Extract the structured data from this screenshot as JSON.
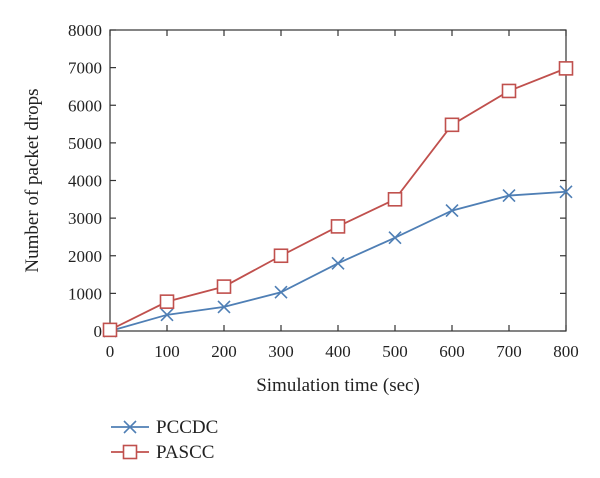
{
  "chart_data": {
    "type": "line",
    "title": "",
    "xlabel": "Simulation time (sec)",
    "ylabel": "Number of packet drops",
    "xlim": [
      0,
      800
    ],
    "ylim": [
      0,
      8000
    ],
    "x_ticks": [
      0,
      100,
      200,
      300,
      400,
      500,
      600,
      700,
      800
    ],
    "y_ticks": [
      0,
      1000,
      2000,
      3000,
      4000,
      5000,
      6000,
      7000,
      8000
    ],
    "x": [
      0,
      100,
      200,
      300,
      400,
      500,
      600,
      700,
      800
    ],
    "grid": false,
    "legend_position": "bottom-left",
    "series": [
      {
        "name": "PCCDC",
        "color": "#4f7fb5",
        "marker": "x",
        "values": [
          0,
          430,
          640,
          1030,
          1800,
          2480,
          3200,
          3600,
          3700
        ]
      },
      {
        "name": "PASCC",
        "color": "#c0504d",
        "marker": "square",
        "values": [
          30,
          780,
          1180,
          2000,
          2780,
          3500,
          5480,
          6380,
          6980
        ]
      }
    ]
  }
}
